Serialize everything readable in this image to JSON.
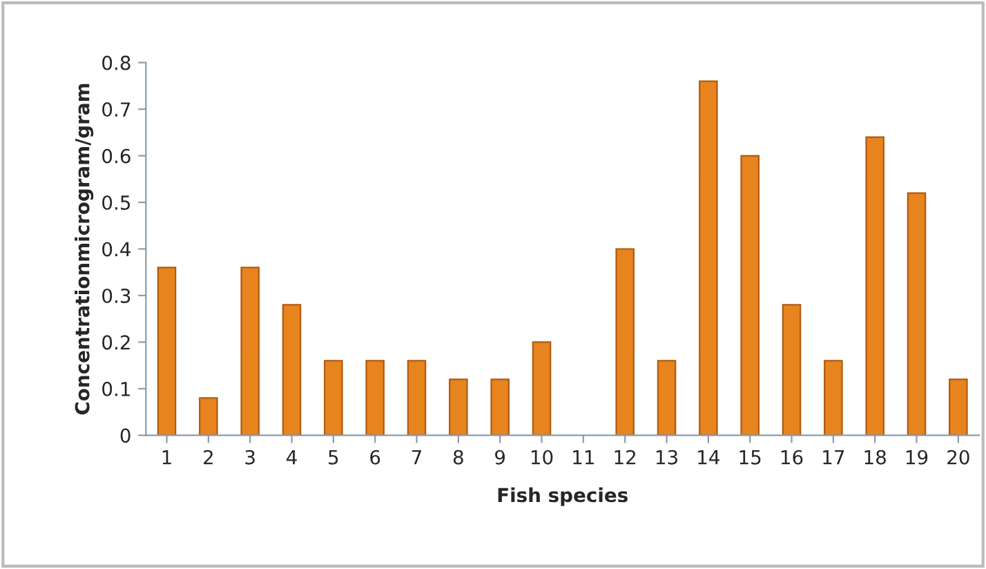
{
  "chart_data": {
    "type": "bar",
    "xlabel": "Fish species",
    "ylabel": "Concentrationmicrogram/gram",
    "categories": [
      "1",
      "2",
      "3",
      "4",
      "5",
      "6",
      "7",
      "8",
      "9",
      "10",
      "11",
      "12",
      "13",
      "14",
      "15",
      "16",
      "17",
      "18",
      "19",
      "20"
    ],
    "values": [
      0.36,
      0.08,
      0.36,
      0.28,
      0.16,
      0.16,
      0.16,
      0.12,
      0.12,
      0.2,
      null,
      0.4,
      0.16,
      0.76,
      0.6,
      0.28,
      0.16,
      0.64,
      0.52,
      0.12
    ],
    "color": "#e8841e",
    "ylim": [
      0,
      0.8
    ],
    "yticks": [
      0,
      0.1,
      0.2,
      0.3,
      0.4,
      0.5,
      0.6,
      0.7,
      0.8
    ],
    "grid": false
  }
}
